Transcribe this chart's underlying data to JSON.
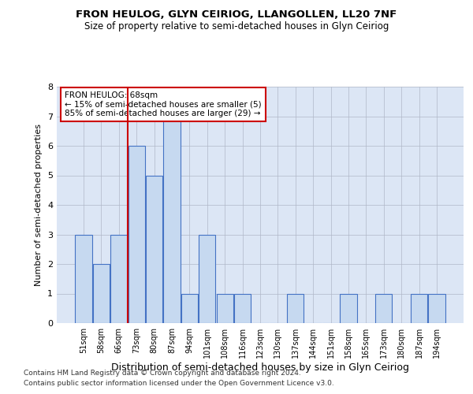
{
  "title1": "FRON HEULOG, GLYN CEIRIOG, LLANGOLLEN, LL20 7NF",
  "title2": "Size of property relative to semi-detached houses in Glyn Ceiriog",
  "xlabel": "Distribution of semi-detached houses by size in Glyn Ceiriog",
  "ylabel": "Number of semi-detached properties",
  "footnote1": "Contains HM Land Registry data © Crown copyright and database right 2024.",
  "footnote2": "Contains public sector information licensed under the Open Government Licence v3.0.",
  "categories": [
    "51sqm",
    "58sqm",
    "66sqm",
    "73sqm",
    "80sqm",
    "87sqm",
    "94sqm",
    "101sqm",
    "108sqm",
    "116sqm",
    "123sqm",
    "130sqm",
    "137sqm",
    "144sqm",
    "151sqm",
    "158sqm",
    "165sqm",
    "173sqm",
    "180sqm",
    "187sqm",
    "194sqm"
  ],
  "values": [
    3,
    2,
    3,
    6,
    5,
    7,
    1,
    3,
    1,
    1,
    0,
    0,
    1,
    0,
    0,
    1,
    0,
    1,
    0,
    1,
    1
  ],
  "bar_color": "#c6d9f0",
  "bar_edge_color": "#4472c4",
  "highlight_index": 2,
  "highlight_line_color": "#cc0000",
  "annotation_title": "FRON HEULOG: 68sqm",
  "annotation_line1": "← 15% of semi-detached houses are smaller (5)",
  "annotation_line2": "85% of semi-detached houses are larger (29) →",
  "annotation_box_color": "#cc0000",
  "ylim": [
    0,
    8
  ],
  "yticks": [
    0,
    1,
    2,
    3,
    4,
    5,
    6,
    7,
    8
  ],
  "grid_color": "#b0b8c8",
  "bg_color": "#dce6f5"
}
